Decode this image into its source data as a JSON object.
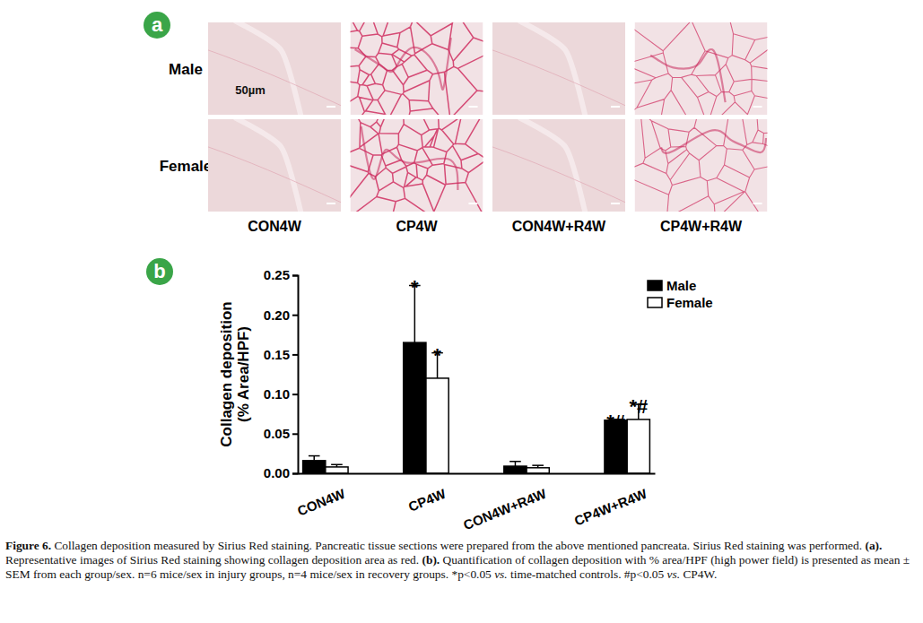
{
  "chart_data": {
    "type": "bar",
    "panel_label": "b",
    "y_label": [
      "Collagen deposition",
      "(% Area/HPF)"
    ],
    "categories": [
      "CON4W",
      "CP4W",
      "CON4W+R4W",
      "CP4W+R4W"
    ],
    "series": [
      {
        "name": "Male",
        "color": "#000000",
        "values": [
          0.016,
          0.165,
          0.009,
          0.067
        ],
        "errors": [
          0.006,
          0.072,
          0.006,
          0.001
        ],
        "significance": [
          null,
          "*",
          null,
          "*#"
        ]
      },
      {
        "name": "Female",
        "color": "#ffffff",
        "values": [
          0.008,
          0.12,
          0.007,
          0.068
        ],
        "errors": [
          0.003,
          0.032,
          0.003,
          0.019
        ],
        "significance": [
          null,
          "*",
          null,
          "*#"
        ]
      }
    ],
    "ylim": [
      0,
      0.25
    ],
    "yticks": [
      {
        "value": 0,
        "label": "0.00"
      },
      0.05,
      {
        "value": 0.1,
        "label": "0.10"
      },
      0.15,
      {
        "value": 0.2,
        "label": "0.20"
      },
      0.25
    ],
    "legend": "top-right",
    "grid": false
  },
  "panel_a": {
    "label": "a",
    "rows": [
      "Male",
      "Female"
    ],
    "columns": [
      "CON4W",
      "CP4W",
      "CON4W+R4W",
      "CP4W+R4W"
    ],
    "scale_bar": "50µm"
  },
  "caption": [
    {
      "text": "Figure 6.",
      "style": "bold"
    },
    {
      "text": " Collagen deposition measured by Sirius Red staining. Pancreatic tissue sections were prepared from the above mentioned pancreata. Sirius Red staining was performed. "
    },
    {
      "text": "(a).",
      "style": "bold"
    },
    {
      "text": " Representative images of Sirius Red staining showing collagen deposition area as red. "
    },
    {
      "text": "(b).",
      "style": "bold"
    },
    {
      "text": " Quantification of collagen deposition with % area/HPF (high power field) is presented as mean ± SEM from each group/sex. n=6 mice/sex in injury groups, n=4 mice/sex in recovery groups. *p<0.05 "
    },
    {
      "text": "vs.",
      "style": "italic"
    },
    {
      "text": " time-matched controls. #p<0.05 "
    },
    {
      "text": "vs.",
      "style": "italic"
    },
    {
      "text": " CP4W."
    }
  ]
}
